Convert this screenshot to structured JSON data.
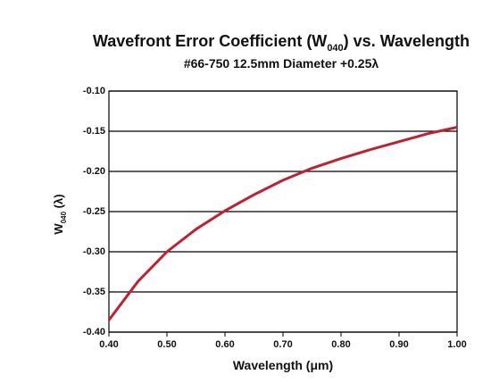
{
  "chart_data": {
    "type": "line",
    "title_parts": [
      "Wavefront Error Coefficient (W",
      "040",
      ") vs. Wavelength"
    ],
    "subtitle": "#66-750 12.5mm Diameter +0.25λ",
    "xlabel": "Wavelength (μm)",
    "ylabel_parts": [
      "W",
      "040",
      " (λ)"
    ],
    "x": [
      0.4,
      0.45,
      0.5,
      0.55,
      0.6,
      0.65,
      0.7,
      0.75,
      0.8,
      0.85,
      0.9,
      0.95,
      1.0
    ],
    "values": [
      -0.385,
      -0.337,
      -0.3,
      -0.272,
      -0.249,
      -0.229,
      -0.211,
      -0.196,
      -0.184,
      -0.173,
      -0.163,
      -0.153,
      -0.145
    ],
    "color": "#c0202f",
    "xlim": [
      0.4,
      1.0
    ],
    "xticks": [
      {
        "value": 0.4,
        "label": "0.40"
      },
      {
        "value": 0.5,
        "label": "0.50"
      },
      {
        "value": 0.6,
        "label": "0.60"
      },
      {
        "value": 0.7,
        "label": "0.70"
      },
      {
        "value": 0.8,
        "label": "0.80"
      },
      {
        "value": 0.9,
        "label": "0.90"
      },
      {
        "value": 1.0,
        "label": "1.00"
      }
    ],
    "ylim": [
      -0.4,
      -0.1
    ],
    "yticks": [
      {
        "value": -0.1,
        "label": "-0.10"
      },
      {
        "value": -0.15,
        "label": "-0.15"
      },
      {
        "value": -0.2,
        "label": "-0.20"
      },
      {
        "value": -0.25,
        "label": "-0.25"
      },
      {
        "value": -0.3,
        "label": "-0.30"
      },
      {
        "value": -0.35,
        "label": "-0.35"
      },
      {
        "value": -0.4,
        "label": "-0.40"
      }
    ],
    "grid": true
  }
}
